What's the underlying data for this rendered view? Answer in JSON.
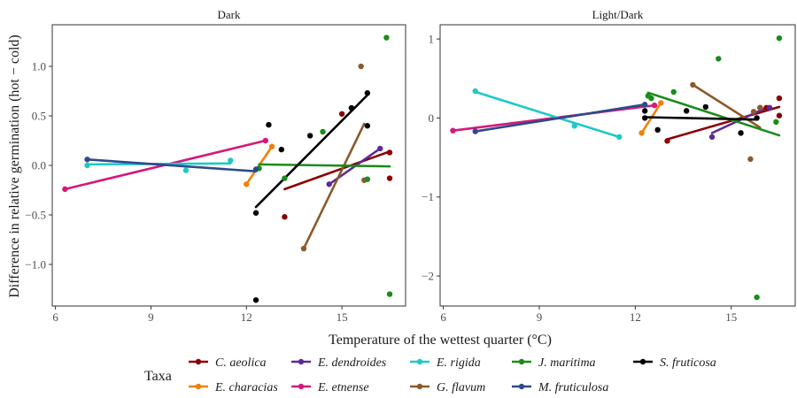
{
  "chart_data": {
    "type": "scatter",
    "xlabel": "Temperature of the wettest quarter (°C)",
    "ylabel": "Difference in relative germination (hot − cold)",
    "legend": {
      "title": "Taxa",
      "placement": "bottom"
    },
    "colors": {
      "C. aeolica": "#8b0000",
      "E. characias": "#f0800a",
      "E. dendroides": "#5e2a96",
      "E. etnense": "#d4197a",
      "E. rigida": "#1fc8c8",
      "G. flavum": "#8b5a2b",
      "J. maritima": "#1a8c1a",
      "M. fruticulosa": "#2e4a8c",
      "S. fruticosa": "#000000"
    },
    "legend_order": [
      "C. aeolica",
      "E. dendroides",
      "E. rigida",
      "J. maritima",
      "S. fruticosa",
      "E. characias",
      "E. etnense",
      "G. flavum",
      "M. fruticulosa"
    ],
    "panels": [
      {
        "title": "Dark",
        "xlim": [
          5.9,
          17.0
        ],
        "ylim": [
          -1.42,
          1.42
        ],
        "xticks": [
          6,
          9,
          12,
          15
        ],
        "yticks": [
          -1.0,
          -0.5,
          0.0,
          0.5,
          1.0
        ],
        "ytick_labels": [
          "−1.0",
          "−0.5",
          "0.0",
          "0.5",
          "1.0"
        ],
        "series": [
          {
            "name": "C. aeolica",
            "points": [
              [
                16.5,
                0.13
              ],
              [
                16.5,
                -0.13
              ],
              [
                15.0,
                0.52
              ],
              [
                13.2,
                -0.52
              ]
            ],
            "fit": [
              [
                13.2,
                -0.24
              ],
              [
                16.5,
                0.14
              ]
            ]
          },
          {
            "name": "E. characias",
            "points": [
              [
                12.0,
                -0.19
              ],
              [
                12.8,
                0.19
              ]
            ],
            "fit": [
              [
                12.0,
                -0.19
              ],
              [
                12.8,
                0.19
              ]
            ]
          },
          {
            "name": "E. dendroides",
            "points": [
              [
                14.6,
                -0.19
              ],
              [
                16.2,
                0.17
              ]
            ],
            "fit": [
              [
                14.6,
                -0.19
              ],
              [
                16.2,
                0.17
              ]
            ]
          },
          {
            "name": "E. etnense",
            "points": [
              [
                6.3,
                -0.24
              ],
              [
                12.6,
                0.25
              ]
            ],
            "fit": [
              [
                6.3,
                -0.24
              ],
              [
                12.6,
                0.25
              ]
            ]
          },
          {
            "name": "E. rigida",
            "points": [
              [
                7.0,
                0.0
              ],
              [
                10.1,
                -0.05
              ],
              [
                11.5,
                0.05
              ]
            ],
            "fit": [
              [
                7.0,
                0.01
              ],
              [
                11.5,
                0.02
              ]
            ]
          },
          {
            "name": "G. flavum",
            "points": [
              [
                13.8,
                -0.84
              ],
              [
                15.6,
                1.0
              ],
              [
                15.7,
                -0.15
              ]
            ],
            "fit": [
              [
                13.8,
                -0.84
              ],
              [
                15.7,
                0.42
              ]
            ]
          },
          {
            "name": "J. maritima",
            "points": [
              [
                12.4,
                -0.03
              ],
              [
                13.2,
                -0.13
              ],
              [
                14.4,
                0.34
              ],
              [
                15.8,
                -0.14
              ],
              [
                16.4,
                1.29
              ],
              [
                16.5,
                -1.3
              ]
            ],
            "fit": [
              [
                12.4,
                0.01
              ],
              [
                16.5,
                -0.01
              ]
            ]
          },
          {
            "name": "M. fruticulosa",
            "points": [
              [
                7.0,
                0.06
              ],
              [
                12.3,
                -0.04
              ]
            ],
            "fit": [
              [
                7.0,
                0.06
              ],
              [
                12.3,
                -0.06
              ]
            ]
          },
          {
            "name": "S. fruticosa",
            "points": [
              [
                12.3,
                -0.48
              ],
              [
                12.3,
                -1.36
              ],
              [
                12.7,
                0.41
              ],
              [
                13.1,
                0.16
              ],
              [
                14.0,
                0.3
              ],
              [
                15.3,
                0.58
              ],
              [
                15.8,
                0.4
              ],
              [
                15.8,
                0.73
              ]
            ],
            "fit": [
              [
                12.3,
                -0.42
              ],
              [
                15.8,
                0.71
              ]
            ]
          }
        ]
      },
      {
        "title": "Light/Dark",
        "xlim": [
          5.9,
          17.0
        ],
        "ylim": [
          -2.38,
          1.18
        ],
        "xticks": [
          6,
          9,
          12,
          15
        ],
        "yticks": [
          -2,
          -1,
          0,
          1
        ],
        "ytick_labels": [
          "−2",
          "−1",
          "0",
          "1"
        ],
        "series": [
          {
            "name": "C. aeolica",
            "points": [
              [
                13.0,
                -0.29
              ],
              [
                16.1,
                0.13
              ],
              [
                16.5,
                0.25
              ],
              [
                16.5,
                0.03
              ]
            ],
            "fit": [
              [
                13.0,
                -0.27
              ],
              [
                16.5,
                0.14
              ]
            ]
          },
          {
            "name": "E. characias",
            "points": [
              [
                12.2,
                -0.19
              ],
              [
                12.8,
                0.19
              ]
            ],
            "fit": [
              [
                12.2,
                -0.19
              ],
              [
                12.8,
                0.19
              ]
            ]
          },
          {
            "name": "E. dendroides",
            "points": [
              [
                14.4,
                -0.24
              ],
              [
                15.9,
                0.13
              ],
              [
                16.2,
                0.13
              ]
            ],
            "fit": [
              [
                14.4,
                -0.19
              ],
              [
                16.2,
                0.15
              ]
            ]
          },
          {
            "name": "E. etnense",
            "points": [
              [
                6.3,
                -0.16
              ],
              [
                12.6,
                0.16
              ]
            ],
            "fit": [
              [
                6.3,
                -0.16
              ],
              [
                12.6,
                0.16
              ]
            ]
          },
          {
            "name": "E. rigida",
            "points": [
              [
                7.0,
                0.34
              ],
              [
                10.1,
                -0.1
              ],
              [
                11.5,
                -0.24
              ]
            ],
            "fit": [
              [
                7.0,
                0.33
              ],
              [
                11.5,
                -0.24
              ]
            ]
          },
          {
            "name": "G. flavum",
            "points": [
              [
                13.8,
                0.42
              ],
              [
                15.6,
                -0.52
              ],
              [
                15.7,
                0.08
              ],
              [
                15.9,
                0.13
              ]
            ],
            "fit": [
              [
                13.8,
                0.42
              ],
              [
                15.9,
                -0.12
              ]
            ]
          },
          {
            "name": "J. maritima",
            "points": [
              [
                12.4,
                0.28
              ],
              [
                12.5,
                0.25
              ],
              [
                13.2,
                0.33
              ],
              [
                14.6,
                0.75
              ],
              [
                15.8,
                -2.27
              ],
              [
                16.4,
                -0.05
              ],
              [
                16.5,
                1.01
              ]
            ],
            "fit": [
              [
                12.4,
                0.32
              ],
              [
                16.5,
                -0.22
              ]
            ]
          },
          {
            "name": "M. fruticulosa",
            "points": [
              [
                7.0,
                -0.17
              ],
              [
                12.3,
                0.17
              ]
            ],
            "fit": [
              [
                7.0,
                -0.17
              ],
              [
                12.3,
                0.17
              ]
            ]
          },
          {
            "name": "S. fruticosa",
            "points": [
              [
                12.3,
                0.0
              ],
              [
                12.3,
                0.09
              ],
              [
                12.7,
                -0.15
              ],
              [
                13.6,
                0.09
              ],
              [
                14.2,
                0.14
              ],
              [
                15.3,
                -0.19
              ],
              [
                15.8,
                0.0
              ]
            ],
            "fit": [
              [
                12.3,
                0.01
              ],
              [
                15.8,
                -0.02
              ]
            ]
          }
        ]
      }
    ]
  }
}
